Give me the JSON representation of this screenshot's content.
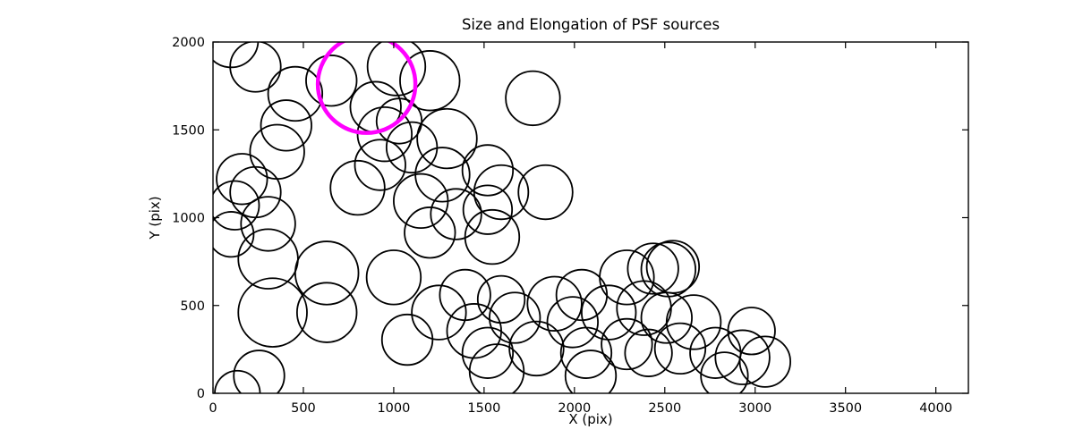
{
  "title": "Size and Elongation of PSF sources",
  "chart_data": {
    "type": "scatter",
    "title": "Size and Elongation of PSF sources",
    "xlabel": "X (pix)",
    "ylabel": "Y (pix)",
    "xlim": [
      0,
      4180
    ],
    "ylim": [
      0,
      2000
    ],
    "x_ticks": [
      0,
      500,
      1000,
      1500,
      2000,
      2500,
      3000,
      3500,
      4000
    ],
    "y_ticks": [
      0,
      500,
      1000,
      1500,
      2000
    ],
    "grid": false,
    "legend": "none",
    "marker": "circle-outline",
    "colors": {
      "default": "#000000",
      "highlight": "#FF00FF",
      "axes": "#000000",
      "background": "#ffffff"
    },
    "circles": [
      {
        "x": 100,
        "y": 2010,
        "r": 150
      },
      {
        "x": 235,
        "y": 1860,
        "r": 140
      },
      {
        "x": 455,
        "y": 1705,
        "r": 150
      },
      {
        "x": 655,
        "y": 1780,
        "r": 140
      },
      {
        "x": 1015,
        "y": 1860,
        "r": 160
      },
      {
        "x": 1200,
        "y": 1780,
        "r": 165
      },
      {
        "x": 1770,
        "y": 1680,
        "r": 150
      },
      {
        "x": 900,
        "y": 1630,
        "r": 140
      },
      {
        "x": 1030,
        "y": 1550,
        "r": 125
      },
      {
        "x": 405,
        "y": 1525,
        "r": 140
      },
      {
        "x": 355,
        "y": 1375,
        "r": 150
      },
      {
        "x": 235,
        "y": 1145,
        "r": 140
      },
      {
        "x": 160,
        "y": 1220,
        "r": 140
      },
      {
        "x": 120,
        "y": 1070,
        "r": 135
      },
      {
        "x": 305,
        "y": 965,
        "r": 150
      },
      {
        "x": 100,
        "y": 905,
        "r": 125
      },
      {
        "x": 950,
        "y": 1475,
        "r": 150
      },
      {
        "x": 925,
        "y": 1300,
        "r": 140
      },
      {
        "x": 800,
        "y": 1170,
        "r": 150
      },
      {
        "x": 1100,
        "y": 1400,
        "r": 140
      },
      {
        "x": 1295,
        "y": 1450,
        "r": 165
      },
      {
        "x": 1270,
        "y": 1245,
        "r": 150
      },
      {
        "x": 1520,
        "y": 1270,
        "r": 140
      },
      {
        "x": 1595,
        "y": 1145,
        "r": 150
      },
      {
        "x": 1840,
        "y": 1145,
        "r": 150
      },
      {
        "x": 1150,
        "y": 1095,
        "r": 150
      },
      {
        "x": 1345,
        "y": 1020,
        "r": 140
      },
      {
        "x": 1520,
        "y": 1045,
        "r": 135
      },
      {
        "x": 1200,
        "y": 915,
        "r": 140
      },
      {
        "x": 1545,
        "y": 890,
        "r": 150
      },
      {
        "x": 305,
        "y": 765,
        "r": 165
      },
      {
        "x": 630,
        "y": 685,
        "r": 175
      },
      {
        "x": 630,
        "y": 460,
        "r": 165
      },
      {
        "x": 330,
        "y": 460,
        "r": 190
      },
      {
        "x": 1000,
        "y": 660,
        "r": 150
      },
      {
        "x": 255,
        "y": 100,
        "r": 140
      },
      {
        "x": 135,
        "y": 0,
        "r": 125
      },
      {
        "x": 1250,
        "y": 460,
        "r": 150
      },
      {
        "x": 1075,
        "y": 305,
        "r": 140
      },
      {
        "x": 1395,
        "y": 560,
        "r": 140
      },
      {
        "x": 1595,
        "y": 535,
        "r": 130
      },
      {
        "x": 1445,
        "y": 355,
        "r": 150
      },
      {
        "x": 1520,
        "y": 230,
        "r": 140
      },
      {
        "x": 1570,
        "y": 125,
        "r": 150
      },
      {
        "x": 1790,
        "y": 255,
        "r": 150
      },
      {
        "x": 1670,
        "y": 430,
        "r": 140
      },
      {
        "x": 1890,
        "y": 510,
        "r": 150
      },
      {
        "x": 2040,
        "y": 560,
        "r": 140
      },
      {
        "x": 1990,
        "y": 405,
        "r": 140
      },
      {
        "x": 2065,
        "y": 230,
        "r": 140
      },
      {
        "x": 2090,
        "y": 100,
        "r": 140
      },
      {
        "x": 2190,
        "y": 460,
        "r": 150
      },
      {
        "x": 2290,
        "y": 660,
        "r": 150
      },
      {
        "x": 2435,
        "y": 710,
        "r": 140
      },
      {
        "x": 2520,
        "y": 705,
        "r": 150
      },
      {
        "x": 2545,
        "y": 720,
        "r": 145
      },
      {
        "x": 2385,
        "y": 485,
        "r": 150
      },
      {
        "x": 2510,
        "y": 430,
        "r": 140
      },
      {
        "x": 2660,
        "y": 405,
        "r": 150
      },
      {
        "x": 2290,
        "y": 280,
        "r": 140
      },
      {
        "x": 2410,
        "y": 230,
        "r": 130
      },
      {
        "x": 2585,
        "y": 255,
        "r": 140
      },
      {
        "x": 2780,
        "y": 230,
        "r": 140
      },
      {
        "x": 2930,
        "y": 205,
        "r": 150
      },
      {
        "x": 3055,
        "y": 180,
        "r": 140
      },
      {
        "x": 2830,
        "y": 100,
        "r": 130
      },
      {
        "x": 2980,
        "y": 355,
        "r": 130
      },
      {
        "x": 850,
        "y": 1760,
        "r": 270,
        "color": "#FF00FF",
        "lw": 4.5
      }
    ]
  }
}
